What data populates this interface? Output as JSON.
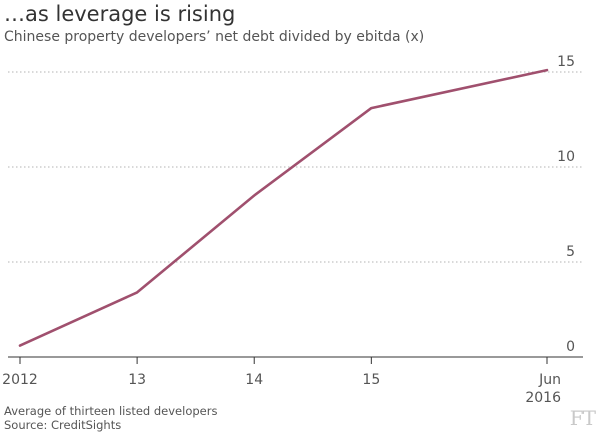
{
  "header": {
    "title": "…as leverage is rising",
    "subtitle": "Chinese property developers’ net debt divided by ebitda (x)"
  },
  "footer": {
    "note": "Average of thirteen listed developers",
    "source": "Source: CreditSights",
    "logo": "FT"
  },
  "colors": {
    "line": "#a0506e",
    "grid": "#b3b3b3",
    "axis": "#333333"
  },
  "chart_data": {
    "type": "line",
    "title": "…as leverage is rising",
    "subtitle": "Chinese property developers’ net debt divided by ebitda (x)",
    "x": [
      2012,
      2013,
      2014,
      2015,
      2016.5
    ],
    "x_ticks": [
      {
        "value": 2012,
        "label": "2012",
        "label2": ""
      },
      {
        "value": 2013,
        "label": "13",
        "label2": ""
      },
      {
        "value": 2014,
        "label": "14",
        "label2": ""
      },
      {
        "value": 2015,
        "label": "15",
        "label2": ""
      },
      {
        "value": 2016.5,
        "label": "Jun",
        "label2": "2016"
      }
    ],
    "series": [
      {
        "name": "",
        "values": [
          0.6,
          3.4,
          8.5,
          13.1,
          15.1
        ]
      }
    ],
    "ylim": [
      0,
      15
    ],
    "y_ticks": [
      0,
      5,
      10,
      15
    ],
    "y_axis_side": "right",
    "grid": true,
    "xlabel": "",
    "ylabel": ""
  }
}
